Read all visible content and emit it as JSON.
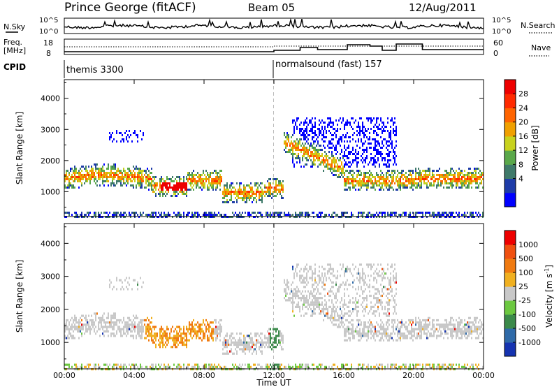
{
  "header": {
    "station": "Prince George (fitACF)",
    "beam": "Beam 05",
    "date": "12/Aug/2011"
  },
  "noise_panel": {
    "left_label": "N.Sky",
    "right_label": "N.Search",
    "ticks_left": [
      "10^5",
      "10^0"
    ],
    "ticks_right": [
      "10^5",
      "10^0"
    ]
  },
  "freq_panel": {
    "left_label_1": "Freq.",
    "left_label_2": "[MHz]",
    "right_label": "Nave",
    "ticks_left": [
      "18",
      "8"
    ],
    "ticks_right": [
      "60",
      "0"
    ]
  },
  "cpid": {
    "label": "CPID",
    "modes": [
      {
        "name": "themis 3300",
        "start_ut": 0
      },
      {
        "name": "normalsound (fast) 157",
        "start_ut": 12
      }
    ]
  },
  "chart_data": [
    {
      "type": "heatmap",
      "panel": "power",
      "ylabel": "Slant Range [km]",
      "yticks": [
        1000,
        2000,
        3000,
        4000
      ],
      "ylim": [
        200,
        4600
      ],
      "xlim_hours": [
        0,
        24
      ],
      "colorbar": {
        "label": "Power [dB]",
        "ticks": [
          "28",
          "24",
          "20",
          "16",
          "12",
          "8",
          "4"
        ],
        "colors": [
          "#0000ff",
          "#1e3ca8",
          "#3f7a6a",
          "#5aa84a",
          "#c8d21e",
          "#f0a000",
          "#ff6400",
          "#ff2a00",
          "#ee0000"
        ]
      }
    },
    {
      "type": "heatmap",
      "panel": "velocity",
      "ylabel": "Slant Range [km]",
      "yticks": [
        1000,
        2000,
        3000,
        4000
      ],
      "ylim": [
        200,
        4600
      ],
      "xlim_hours": [
        0,
        24
      ],
      "xlabel": "Time UT",
      "xticks": [
        "00:00",
        "04:00",
        "08:00",
        "12:00",
        "16:00",
        "20:00",
        "00:00"
      ],
      "colorbar": {
        "label": "Velocity [m s^-1]",
        "ticks": [
          "1000",
          "500",
          "100",
          "25",
          "-25",
          "-100",
          "-500",
          "-1000"
        ],
        "colors": [
          "#1533b0",
          "#2f6aa8",
          "#3b8a4a",
          "#6cc840",
          "#c8c8c8",
          "#f0b020",
          "#f07a10",
          "#f05010",
          "#ee0000"
        ]
      }
    }
  ]
}
